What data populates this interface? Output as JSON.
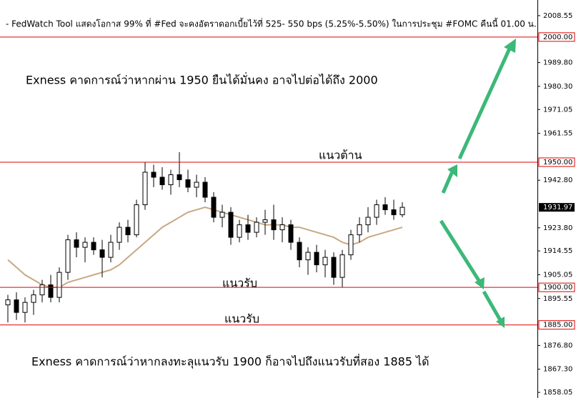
{
  "chart_data": {
    "type": "candlestick",
    "title": "- FedWatch Tool แสดงโอกาส 99% ที่ #Fed จะคงอัตราดอกเบี้ยไว้ที่ 525- 550 bps (5.25%-5.50%) ในการประชุม #FOMC คืนนี้ 01.00 น.",
    "annotations": [
      "Exness คาดการณ์ว่าหากผ่าน 1950 ยืนได้มั่นคง อาจไปต่อได้ถึง 2000",
      "แนวต้าน",
      "แนวรับ",
      "แนวรับ",
      "Exness คาดการณ์ว่าหากลงทะลุแนวรับ 1900 ก็อาจไปถึงแนวรับที่สอง 1885 ได้"
    ],
    "ylim": [
      1855.8,
      2014.8
    ],
    "yticks": [
      2008.55,
      {
        "value": 1989.8,
        "label": "1989.80"
      },
      {
        "value": 1980.3,
        "label": "1980.30"
      },
      1971.05,
      1961.55,
      {
        "value": 1942.8,
        "label": "1942.80"
      },
      {
        "value": 1923.8,
        "label": "1923.80"
      },
      1914.55,
      1905.05,
      1895.55,
      {
        "value": 1876.8,
        "label": "1876.80"
      },
      {
        "value": 1867.3,
        "label": "1867.30"
      },
      1858.05
    ],
    "levels": [
      {
        "value": 2000,
        "label": "2000.00"
      },
      {
        "value": 1950,
        "label": "1950.00"
      },
      {
        "value": 1900,
        "label": "1900.00"
      },
      {
        "value": 1885,
        "label": "1885.00"
      }
    ],
    "level_color": "#e00000",
    "last_price": 1931.97,
    "candle_color": "#000000",
    "open": [
      1893,
      1895,
      1890,
      1894,
      1897,
      1901,
      1896,
      1906,
      1919,
      1916,
      1918,
      1915,
      1912,
      1918,
      1924,
      1921,
      1933,
      1946,
      1944,
      1941,
      1945,
      1943,
      1940,
      1942,
      1936,
      1928,
      1930,
      1920,
      1925,
      1922,
      1926,
      1927,
      1923,
      1925,
      1918,
      1911,
      1914,
      1909,
      1912,
      1904,
      1913,
      1921,
      1925,
      1928,
      1933,
      1931,
      1929
    ],
    "high": [
      1897,
      1898,
      1896,
      1899,
      1903,
      1905,
      1908,
      1921,
      1922,
      1920,
      1920,
      1919,
      1921,
      1926,
      1927,
      1935,
      1950,
      1949,
      1948,
      1947,
      1954,
      1947,
      1945,
      1944,
      1938,
      1933,
      1932,
      1927,
      1929,
      1928,
      1931,
      1933,
      1928,
      1927,
      1920,
      1916,
      1917,
      1915,
      1914,
      1915,
      1923,
      1928,
      1932,
      1935,
      1936,
      1935,
      1934
    ],
    "low": [
      1886,
      1887,
      1886,
      1889,
      1894,
      1894,
      1894,
      1903,
      1912,
      1910,
      1913,
      1904,
      1910,
      1915,
      1918,
      1920,
      1931,
      1940,
      1939,
      1937,
      1940,
      1938,
      1936,
      1934,
      1926,
      1924,
      1917,
      1918,
      1919,
      1920,
      1921,
      1919,
      1918,
      1915,
      1908,
      1905,
      1906,
      1904,
      1901,
      1900,
      1911,
      1918,
      1922,
      1925,
      1929,
      1927,
      1928
    ],
    "close": [
      1895,
      1890,
      1894,
      1897,
      1901,
      1896,
      1906,
      1919,
      1916,
      1918,
      1915,
      1912,
      1918,
      1924,
      1921,
      1933,
      1946,
      1944,
      1941,
      1945,
      1943,
      1940,
      1942,
      1936,
      1928,
      1930,
      1920,
      1925,
      1922,
      1926,
      1927,
      1923,
      1925,
      1918,
      1911,
      1914,
      1909,
      1912,
      1904,
      1913,
      1921,
      1925,
      1928,
      1933,
      1931,
      1929,
      1931.97
    ],
    "ma": {
      "color": "#c8a882",
      "values": [
        1911,
        1908,
        1905,
        1903,
        1901,
        1900,
        1900,
        1902,
        1903,
        1904,
        1905,
        1906,
        1907,
        1909,
        1912,
        1915,
        1918,
        1921,
        1924,
        1926,
        1928,
        1930,
        1931,
        1932,
        1931,
        1930,
        1929,
        1928,
        1927,
        1926,
        1925,
        1925,
        1925,
        1924,
        1924,
        1923,
        1922,
        1921,
        1920,
        1918,
        1917,
        1918,
        1920,
        1921,
        1922,
        1923,
        1924
      ]
    }
  }
}
